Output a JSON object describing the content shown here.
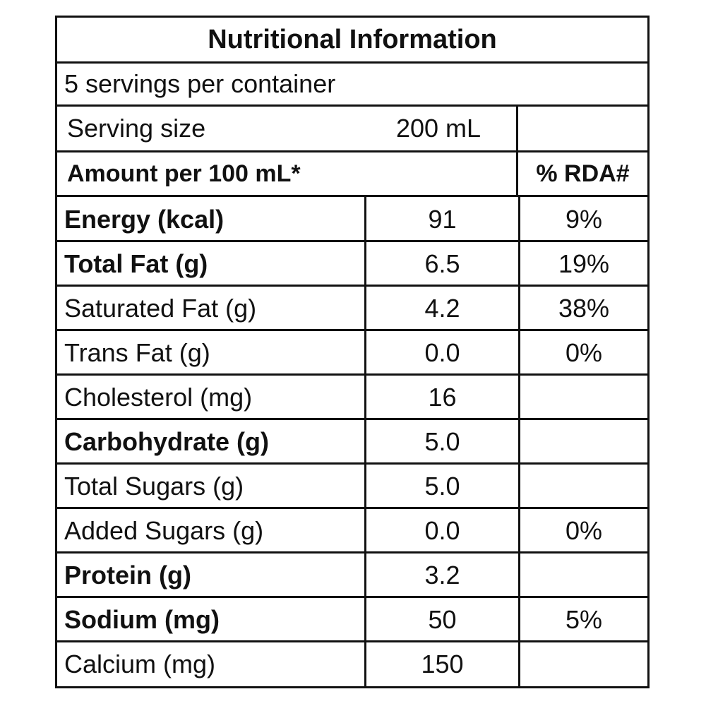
{
  "title": "Nutritional Information",
  "servings": "5 servings per container",
  "serving_size": {
    "label": "Serving size",
    "value": "200 mL"
  },
  "header": {
    "amount": "Amount per 100 mL*",
    "rda": "% RDA#"
  },
  "rows": [
    {
      "name": "Energy (kcal)",
      "amount": "91",
      "rda": "9%",
      "bold": true
    },
    {
      "name": "Total Fat (g)",
      "amount": "6.5",
      "rda": "19%",
      "bold": true
    },
    {
      "name": "Saturated Fat (g)",
      "amount": "4.2",
      "rda": "38%",
      "bold": false
    },
    {
      "name": "Trans Fat (g)",
      "amount": "0.0",
      "rda": "0%",
      "bold": false
    },
    {
      "name": "Cholesterol (mg)",
      "amount": "16",
      "bold": false
    },
    {
      "name": "Carbohydrate (g)",
      "amount": "5.0",
      "bold": true
    },
    {
      "name": "Total Sugars (g)",
      "amount": "5.0",
      "bold": false
    },
    {
      "name": "Added Sugars (g)",
      "amount": "0.0",
      "rda": "0%",
      "bold": false
    },
    {
      "name": "Protein (g)",
      "amount": "3.2",
      "bold": true
    },
    {
      "name": "Sodium (mg)",
      "amount": "50",
      "rda": "5%",
      "bold": true
    },
    {
      "name": "Calcium (mg)",
      "amount": "150",
      "bold": false
    }
  ]
}
